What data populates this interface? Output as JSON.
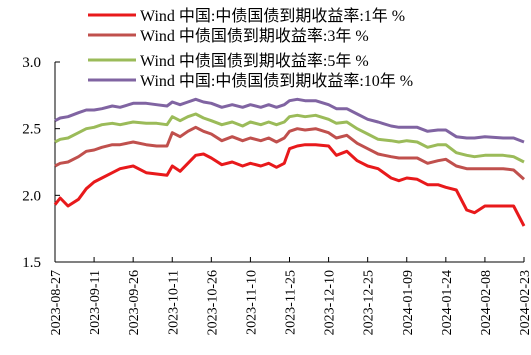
{
  "chart_data": {
    "type": "line",
    "title": "",
    "xlabel": "",
    "ylabel": "",
    "ylim": [
      1.5,
      3.0
    ],
    "yticks": [
      "1.5",
      "2.0",
      "2.5",
      "3.0"
    ],
    "x_tick_labels": [
      "2023-08-27",
      "2023-09-11",
      "2023-09-26",
      "2023-10-11",
      "2023-10-26",
      "2023-11-10",
      "2023-11-25",
      "2023-12-10",
      "2023-12-25",
      "2024-01-09",
      "2024-01-24",
      "2024-02-08",
      "2024-02-23"
    ],
    "grid": false,
    "legend_position": "top",
    "colors": [
      "#e8191b",
      "#c0504d",
      "#9bbb59",
      "#8064a2"
    ],
    "x": [
      "2023-08-27",
      "2023-08-29",
      "2023-09-01",
      "2023-09-05",
      "2023-09-08",
      "2023-09-11",
      "2023-09-14",
      "2023-09-18",
      "2023-09-21",
      "2023-09-26",
      "2023-10-01",
      "2023-10-05",
      "2023-10-09",
      "2023-10-11",
      "2023-10-14",
      "2023-10-17",
      "2023-10-20",
      "2023-10-23",
      "2023-10-26",
      "2023-10-30",
      "2023-11-03",
      "2023-11-07",
      "2023-11-10",
      "2023-11-14",
      "2023-11-17",
      "2023-11-20",
      "2023-11-23",
      "2023-11-25",
      "2023-11-28",
      "2023-12-01",
      "2023-12-05",
      "2023-12-10",
      "2023-12-13",
      "2023-12-17",
      "2023-12-21",
      "2023-12-25",
      "2023-12-29",
      "2024-01-03",
      "2024-01-06",
      "2024-01-09",
      "2024-01-13",
      "2024-01-17",
      "2024-01-21",
      "2024-01-24",
      "2024-01-28",
      "2024-02-01",
      "2024-02-04",
      "2024-02-08",
      "2024-02-15",
      "2024-02-19",
      "2024-02-23"
    ],
    "series": [
      {
        "name": "Wind 中国:中债国债到期收益率:1年 %",
        "values": [
          1.93,
          1.98,
          1.92,
          1.97,
          2.05,
          2.1,
          2.13,
          2.17,
          2.2,
          2.22,
          2.17,
          2.16,
          2.15,
          2.22,
          2.18,
          2.24,
          2.3,
          2.31,
          2.28,
          2.23,
          2.25,
          2.22,
          2.24,
          2.22,
          2.24,
          2.21,
          2.24,
          2.35,
          2.37,
          2.38,
          2.38,
          2.37,
          2.3,
          2.33,
          2.26,
          2.22,
          2.2,
          2.13,
          2.11,
          2.13,
          2.12,
          2.08,
          2.08,
          2.06,
          2.04,
          1.89,
          1.87,
          1.92,
          1.92,
          1.92,
          1.77
        ]
      },
      {
        "name": "Wind 中债国债到期收益率:3年 %",
        "values": [
          2.22,
          2.24,
          2.25,
          2.29,
          2.33,
          2.34,
          2.36,
          2.38,
          2.38,
          2.4,
          2.38,
          2.37,
          2.37,
          2.47,
          2.44,
          2.48,
          2.51,
          2.48,
          2.46,
          2.41,
          2.44,
          2.41,
          2.43,
          2.41,
          2.43,
          2.4,
          2.43,
          2.48,
          2.5,
          2.49,
          2.5,
          2.47,
          2.43,
          2.45,
          2.39,
          2.35,
          2.31,
          2.29,
          2.28,
          2.28,
          2.28,
          2.24,
          2.26,
          2.27,
          2.22,
          2.2,
          2.2,
          2.2,
          2.2,
          2.19,
          2.12
        ]
      },
      {
        "name": "Wind 中债国债到期收益率:5年 %",
        "values": [
          2.4,
          2.42,
          2.43,
          2.47,
          2.5,
          2.51,
          2.53,
          2.54,
          2.53,
          2.55,
          2.54,
          2.54,
          2.53,
          2.59,
          2.56,
          2.59,
          2.61,
          2.58,
          2.56,
          2.53,
          2.55,
          2.52,
          2.55,
          2.53,
          2.55,
          2.53,
          2.55,
          2.59,
          2.6,
          2.59,
          2.6,
          2.57,
          2.54,
          2.55,
          2.5,
          2.46,
          2.42,
          2.41,
          2.4,
          2.41,
          2.4,
          2.36,
          2.38,
          2.38,
          2.32,
          2.3,
          2.29,
          2.3,
          2.3,
          2.29,
          2.25
        ]
      },
      {
        "name": "Wind 中国:中债国债到期收益率:10年 %",
        "values": [
          2.56,
          2.58,
          2.59,
          2.62,
          2.64,
          2.64,
          2.65,
          2.67,
          2.66,
          2.69,
          2.69,
          2.68,
          2.67,
          2.7,
          2.68,
          2.7,
          2.72,
          2.7,
          2.69,
          2.66,
          2.68,
          2.66,
          2.68,
          2.66,
          2.68,
          2.66,
          2.68,
          2.71,
          2.72,
          2.71,
          2.71,
          2.68,
          2.65,
          2.65,
          2.61,
          2.57,
          2.55,
          2.52,
          2.51,
          2.51,
          2.51,
          2.48,
          2.49,
          2.49,
          2.44,
          2.43,
          2.43,
          2.44,
          2.43,
          2.43,
          2.4
        ]
      }
    ]
  }
}
